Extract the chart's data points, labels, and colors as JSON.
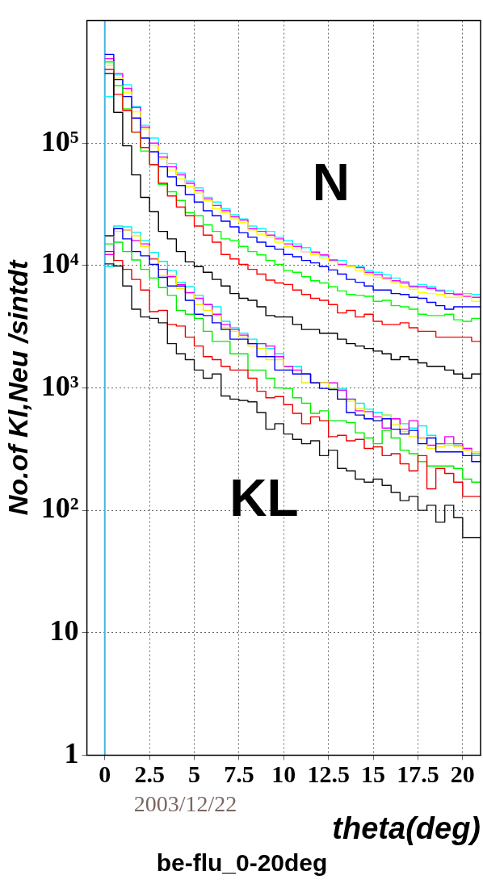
{
  "chart_data": {
    "type": "histogram",
    "title": "be-flu_0-20deg",
    "xlabel": "theta(deg)",
    "ylabel": "No.of Kl,Neu /sintdt",
    "annotations": [
      "N",
      "KL",
      "2003/12/22"
    ],
    "bins": [
      0,
      0.5,
      1,
      1.5,
      2,
      2.5,
      3,
      3.5,
      4,
      4.5,
      5,
      5.5,
      6,
      6.5,
      7,
      7.5,
      8,
      8.5,
      9,
      9.5,
      10,
      10.5,
      11,
      11.5,
      12,
      12.5,
      13,
      13.5,
      14,
      14.5,
      15,
      15.5,
      16,
      16.5,
      17,
      17.5,
      18,
      18.5,
      19,
      19.5,
      20,
      20.5,
      21
    ],
    "xlim": [
      -1,
      21
    ],
    "xticks": [
      0,
      2.5,
      5,
      7.5,
      10,
      12.5,
      15,
      17.5,
      20
    ],
    "ylim": [
      1,
      1000000
    ],
    "yticks": [
      1,
      10,
      {
        "value": 100,
        "label": "10²"
      },
      {
        "value": 1000,
        "label": "10³"
      },
      {
        "value": 10000,
        "label": "10⁴"
      },
      {
        "value": 100000,
        "label": "10⁵"
      }
    ],
    "ref_lines": [
      {
        "axis": "x",
        "value": 0,
        "color": "#44b4e4"
      }
    ],
    "log": true,
    "grid": true,
    "legend": false,
    "marker": "none",
    "line_style": "solid",
    "series": [
      {
        "color": "#000000",
        "values": [
          370000,
          178000,
          95000,
          55000,
          36000,
          27500,
          19000,
          16500,
          13000,
          10700,
          9800,
          8800,
          7700,
          6800,
          5900,
          5400,
          5200,
          4600,
          3900,
          3800,
          3800,
          3300,
          3000,
          3000,
          2800,
          2800,
          2500,
          2300,
          2200,
          2100,
          2000,
          1900,
          1700,
          1800,
          1700,
          1600,
          1500,
          1500,
          1400,
          1300,
          1200,
          1300
        ]
      },
      {
        "color": "#ff0000",
        "values": [
          400000,
          250000,
          185000,
          123000,
          92000,
          67000,
          47000,
          37000,
          30000,
          25500,
          21000,
          17700,
          15500,
          12300,
          11300,
          10200,
          9300,
          8500,
          7600,
          7200,
          7000,
          6300,
          5800,
          5400,
          5200,
          4800,
          4100,
          4300,
          3800,
          4000,
          3500,
          3300,
          3300,
          3400,
          3100,
          2900,
          2900,
          2600,
          2600,
          2600,
          2600,
          2400
        ]
      },
      {
        "color": "#00ff00",
        "values": [
          460000,
          295000,
          190000,
          123000,
          86000,
          66000,
          46000,
          40000,
          34000,
          27000,
          25500,
          21500,
          19000,
          16500,
          16000,
          14300,
          13000,
          12200,
          11000,
          10200,
          9100,
          8800,
          8100,
          7500,
          7200,
          6700,
          6200,
          5800,
          5700,
          5600,
          5100,
          5200,
          4700,
          4600,
          4400,
          4000,
          3900,
          3900,
          4000,
          3600,
          3500,
          3700
        ]
      },
      {
        "color": "#0000ff",
        "values": [
          530000,
          330000,
          240000,
          160000,
          110000,
          85000,
          64000,
          53000,
          45000,
          38000,
          33000,
          28000,
          25500,
          23000,
          20700,
          18500,
          17000,
          15500,
          14300,
          13600,
          12300,
          11800,
          11000,
          10500,
          9800,
          9200,
          8500,
          7700,
          7300,
          6800,
          6300,
          6300,
          5900,
          5800,
          5500,
          5400,
          5000,
          4700,
          4400,
          4600,
          4600,
          4600
        ]
      },
      {
        "color": "#ffff00",
        "values": [
          430000,
          340000,
          260000,
          180000,
          130000,
          95000,
          74000,
          60000,
          51000,
          44000,
          39000,
          34000,
          29000,
          27000,
          24000,
          22500,
          19500,
          18000,
          17000,
          15500,
          14300,
          13600,
          13000,
          12300,
          11500,
          10800,
          10000,
          9800,
          9100,
          8500,
          8000,
          7700,
          7200,
          6700,
          6400,
          6000,
          5900,
          5800,
          5500,
          5500,
          5700,
          5100
        ]
      },
      {
        "color": "#ff00ff",
        "values": [
          490000,
          370000,
          280000,
          195000,
          135000,
          100000,
          77000,
          64000,
          55000,
          47000,
          41000,
          35000,
          31000,
          28000,
          25000,
          23500,
          20000,
          19000,
          17700,
          16500,
          15000,
          14300,
          13000,
          12800,
          12200,
          11100,
          10200,
          9800,
          9600,
          8800,
          8400,
          7900,
          7500,
          7200,
          6700,
          6700,
          6500,
          6200,
          5900,
          5800,
          5600,
          5500
        ]
      },
      {
        "color": "#00ffff",
        "values": [
          240000,
          360000,
          300000,
          200000,
          140000,
          110000,
          82000,
          68000,
          57000,
          49000,
          43000,
          36000,
          33000,
          29000,
          26000,
          24000,
          21000,
          20000,
          19000,
          17000,
          16000,
          15000,
          14000,
          13000,
          12000,
          11000,
          11000,
          10000,
          9800,
          9100,
          8800,
          8400,
          7900,
          7400,
          6800,
          7000,
          6700,
          6300,
          6200,
          5900,
          5900,
          5800
        ]
      },
      {
        "color": "#141414",
        "values": [
          10300,
          9900,
          6800,
          4400,
          3800,
          3700,
          3400,
          2300,
          1900,
          1700,
          1400,
          1200,
          1300,
          860,
          810,
          790,
          770,
          630,
          460,
          510,
          420,
          380,
          350,
          370,
          280,
          310,
          220,
          210,
          180,
          170,
          180,
          160,
          140,
          120,
          130,
          100,
          110,
          80,
          110,
          87,
          60,
          60
        ]
      },
      {
        "color": "#ee0000",
        "values": [
          13000,
          11000,
          9300,
          7700,
          6300,
          4200,
          4300,
          3300,
          3200,
          2600,
          2200,
          1800,
          1700,
          1500,
          1400,
          1400,
          1200,
          940,
          830,
          850,
          730,
          620,
          510,
          580,
          540,
          400,
          410,
          370,
          380,
          320,
          330,
          280,
          290,
          240,
          210,
          280,
          150,
          220,
          200,
          170,
          130,
          130
        ]
      },
      {
        "color": "#00ee00",
        "values": [
          15000,
          15500,
          13000,
          11100,
          9300,
          7900,
          6600,
          5700,
          4300,
          4000,
          3700,
          2900,
          2400,
          2400,
          1900,
          1900,
          1400,
          1400,
          1200,
          1000,
          990,
          830,
          750,
          620,
          650,
          540,
          540,
          520,
          430,
          390,
          350,
          450,
          390,
          310,
          290,
          250,
          230,
          230,
          230,
          220,
          180,
          170
        ]
      },
      {
        "color": "#0000ee",
        "values": [
          17500,
          20000,
          16500,
          13000,
          12000,
          10200,
          8000,
          6800,
          6800,
          5200,
          4000,
          3900,
          3400,
          3000,
          2500,
          2500,
          2300,
          1800,
          1800,
          1400,
          1400,
          1300,
          1300,
          1100,
          990,
          970,
          810,
          630,
          600,
          560,
          540,
          560,
          460,
          420,
          450,
          350,
          390,
          300,
          300,
          300,
          280,
          250
        ]
      },
      {
        "color": "#eeee00",
        "values": [
          17300,
          19000,
          19500,
          17500,
          14300,
          11500,
          8300,
          8300,
          6500,
          5900,
          4800,
          4300,
          3900,
          3100,
          2900,
          2600,
          2200,
          2100,
          1700,
          1700,
          1400,
          1300,
          1100,
          1100,
          1100,
          990,
          810,
          780,
          680,
          560,
          540,
          600,
          500,
          440,
          400,
          390,
          320,
          330,
          340,
          330,
          310,
          300
        ]
      },
      {
        "color": "#ee00ee",
        "values": [
          12300,
          20000,
          19500,
          16000,
          15000,
          11300,
          9300,
          8100,
          7000,
          6000,
          5400,
          4800,
          4000,
          3300,
          3000,
          2700,
          2300,
          2300,
          2200,
          1800,
          1500,
          1400,
          1300,
          1100,
          1100,
          1100,
          960,
          810,
          650,
          640,
          580,
          470,
          560,
          460,
          540,
          390,
          340,
          350,
          400,
          350,
          320,
          280
        ]
      },
      {
        "color": "#00eeee",
        "values": [
          9800,
          21000,
          20700,
          18700,
          16000,
          12800,
          10800,
          9100,
          7300,
          6700,
          5700,
          4800,
          4600,
          3500,
          3100,
          2800,
          2500,
          2300,
          2100,
          1900,
          1500,
          1500,
          1300,
          1100,
          1100,
          990,
          990,
          810,
          750,
          670,
          630,
          600,
          560,
          510,
          470,
          490,
          410,
          350,
          350,
          340,
          320,
          290
        ]
      }
    ]
  }
}
